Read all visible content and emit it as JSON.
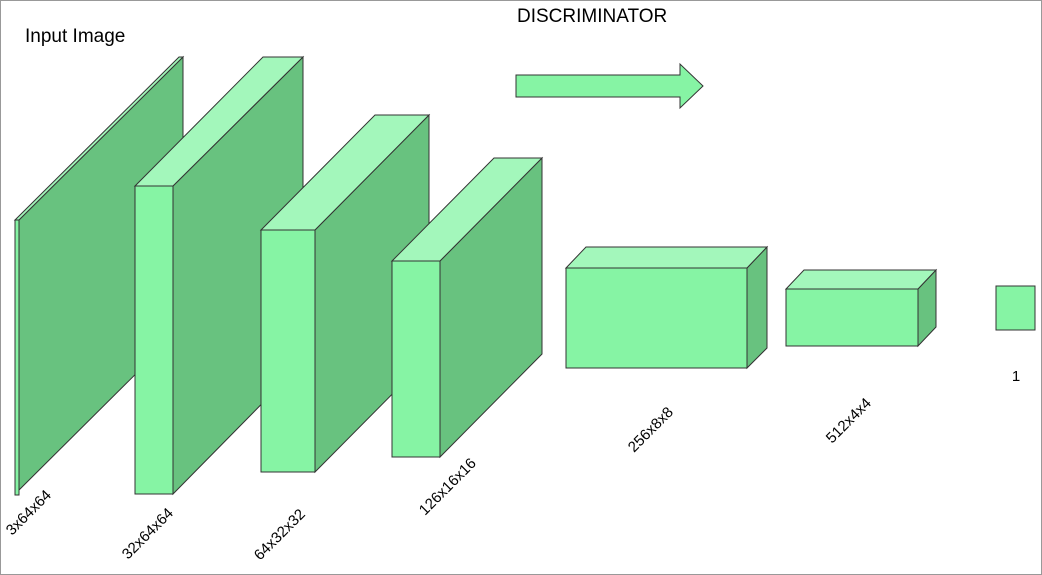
{
  "title": "DISCRIMINATOR",
  "input_label": "Input Image",
  "layers": [
    {
      "label": "3x64x64"
    },
    {
      "label": "32x64x64"
    },
    {
      "label": "64x32x32"
    },
    {
      "label": "126x16x16"
    },
    {
      "label": "256x8x8"
    },
    {
      "label": "512x4x4"
    },
    {
      "label": "1"
    }
  ]
}
